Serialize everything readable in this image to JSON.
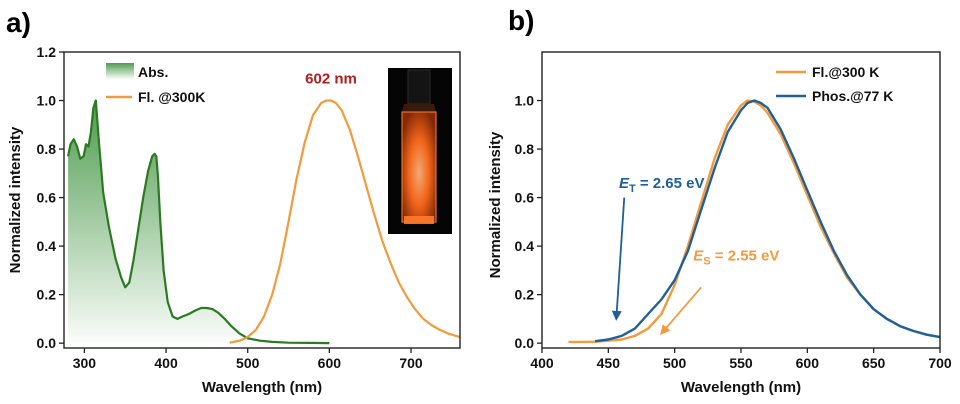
{
  "chart_data": [
    {
      "panel_label": "a)",
      "type": "area",
      "xlabel": "Wavelength (nm)",
      "ylabel": "Normalized intensity",
      "xlim": [
        275,
        760
      ],
      "ylim": [
        -0.02,
        1.2
      ],
      "xticks": [
        300,
        400,
        500,
        600,
        700
      ],
      "yticks": [
        0.0,
        0.2,
        0.4,
        0.6,
        0.8,
        1.0,
        1.2
      ],
      "ytick_labels": [
        "0.0",
        "0.2",
        "0.4",
        "0.6",
        "0.8",
        "1.0",
        "1.2"
      ],
      "legend_position": "top-left",
      "annotation": {
        "text": "602 nm",
        "x": 602,
        "y": 1.07,
        "color": "#b01e1e"
      },
      "inset_image": "cuvette-photo",
      "series": [
        {
          "name": "Abs.",
          "style": "filled-line",
          "color": "#2b7a22",
          "fill_color": "#3a9a3a",
          "x": [
            280,
            283,
            287,
            291,
            295,
            299,
            302,
            305,
            308,
            311,
            314,
            318,
            323,
            330,
            338,
            345,
            350,
            355,
            360,
            366,
            372,
            378,
            383,
            386,
            388,
            390,
            393,
            397,
            402,
            408,
            414,
            420,
            428,
            436,
            443,
            450,
            457,
            464,
            472,
            480,
            490,
            500,
            515,
            530,
            550,
            575,
            600
          ],
          "values": [
            0.77,
            0.82,
            0.84,
            0.81,
            0.76,
            0.77,
            0.82,
            0.81,
            0.87,
            0.97,
            1.0,
            0.82,
            0.62,
            0.48,
            0.35,
            0.27,
            0.23,
            0.25,
            0.34,
            0.47,
            0.6,
            0.71,
            0.77,
            0.78,
            0.77,
            0.69,
            0.5,
            0.3,
            0.17,
            0.11,
            0.1,
            0.11,
            0.12,
            0.135,
            0.145,
            0.145,
            0.14,
            0.125,
            0.1,
            0.07,
            0.04,
            0.02,
            0.01,
            0.005,
            0.002,
            0.001,
            0.0
          ]
        },
        {
          "name": "Fl. @300K",
          "style": "line",
          "color": "#f39a3c",
          "x": [
            478,
            490,
            500,
            510,
            520,
            530,
            540,
            550,
            560,
            570,
            580,
            590,
            596,
            602,
            608,
            615,
            625,
            635,
            645,
            655,
            665,
            675,
            685,
            695,
            705,
            715,
            725,
            735,
            745,
            760
          ],
          "values": [
            0.002,
            0.01,
            0.025,
            0.055,
            0.11,
            0.2,
            0.33,
            0.5,
            0.68,
            0.83,
            0.94,
            0.99,
            1.0,
            1.0,
            0.99,
            0.96,
            0.88,
            0.77,
            0.65,
            0.53,
            0.42,
            0.33,
            0.25,
            0.19,
            0.14,
            0.1,
            0.075,
            0.055,
            0.04,
            0.025
          ]
        }
      ]
    },
    {
      "panel_label": "b)",
      "type": "line",
      "xlabel": "Wavelength (nm)",
      "ylabel": "Normalized intensity",
      "xlim": [
        400,
        700
      ],
      "ylim": [
        -0.02,
        1.2
      ],
      "xticks": [
        400,
        450,
        500,
        550,
        600,
        650,
        700
      ],
      "yticks": [
        0.0,
        0.2,
        0.4,
        0.6,
        0.8,
        1.0
      ],
      "ytick_labels": [
        "0.0",
        "0.2",
        "0.4",
        "0.6",
        "0.8",
        "1.0"
      ],
      "legend_position": "top-right",
      "annotations": [
        {
          "main": "E",
          "sub": "T",
          "rest": " = 2.65 eV",
          "color": "#1f5f9a",
          "text_x": 458,
          "text_y": 0.64,
          "arrow_from": [
            462,
            0.6
          ],
          "arrow_to": [
            456,
            0.1
          ]
        },
        {
          "main": "E",
          "sub": "S",
          "rest": " = 2.55 eV",
          "color": "#f39a3c",
          "text_x": 514,
          "text_y": 0.34,
          "arrow_from": [
            520,
            0.23
          ],
          "arrow_to": [
            490,
            0.04
          ]
        }
      ],
      "series": [
        {
          "name": "Fl.@300 K",
          "color": "#f39a3c",
          "x": [
            420,
            430,
            440,
            450,
            460,
            470,
            480,
            490,
            500,
            510,
            520,
            530,
            540,
            550,
            555,
            560,
            565,
            570,
            580,
            590,
            600,
            610,
            620,
            630,
            640,
            650,
            660,
            670,
            680,
            690,
            700
          ],
          "values": [
            0.005,
            0.005,
            0.006,
            0.01,
            0.015,
            0.03,
            0.06,
            0.12,
            0.24,
            0.4,
            0.58,
            0.76,
            0.9,
            0.98,
            1.0,
            0.995,
            0.98,
            0.95,
            0.86,
            0.74,
            0.61,
            0.48,
            0.37,
            0.27,
            0.2,
            0.14,
            0.1,
            0.07,
            0.05,
            0.035,
            0.025
          ]
        },
        {
          "name": "Phos.@77 K",
          "color": "#1f5f9a",
          "x": [
            440,
            450,
            460,
            470,
            480,
            490,
            500,
            510,
            520,
            530,
            540,
            550,
            555,
            560,
            565,
            570,
            580,
            590,
            600,
            610,
            620,
            630,
            640,
            650,
            660,
            670,
            680,
            690,
            700
          ],
          "values": [
            0.008,
            0.015,
            0.03,
            0.06,
            0.12,
            0.18,
            0.26,
            0.38,
            0.55,
            0.72,
            0.87,
            0.96,
            0.99,
            1.0,
            0.99,
            0.97,
            0.88,
            0.76,
            0.63,
            0.5,
            0.38,
            0.28,
            0.2,
            0.14,
            0.1,
            0.07,
            0.05,
            0.035,
            0.025
          ]
        }
      ]
    }
  ]
}
